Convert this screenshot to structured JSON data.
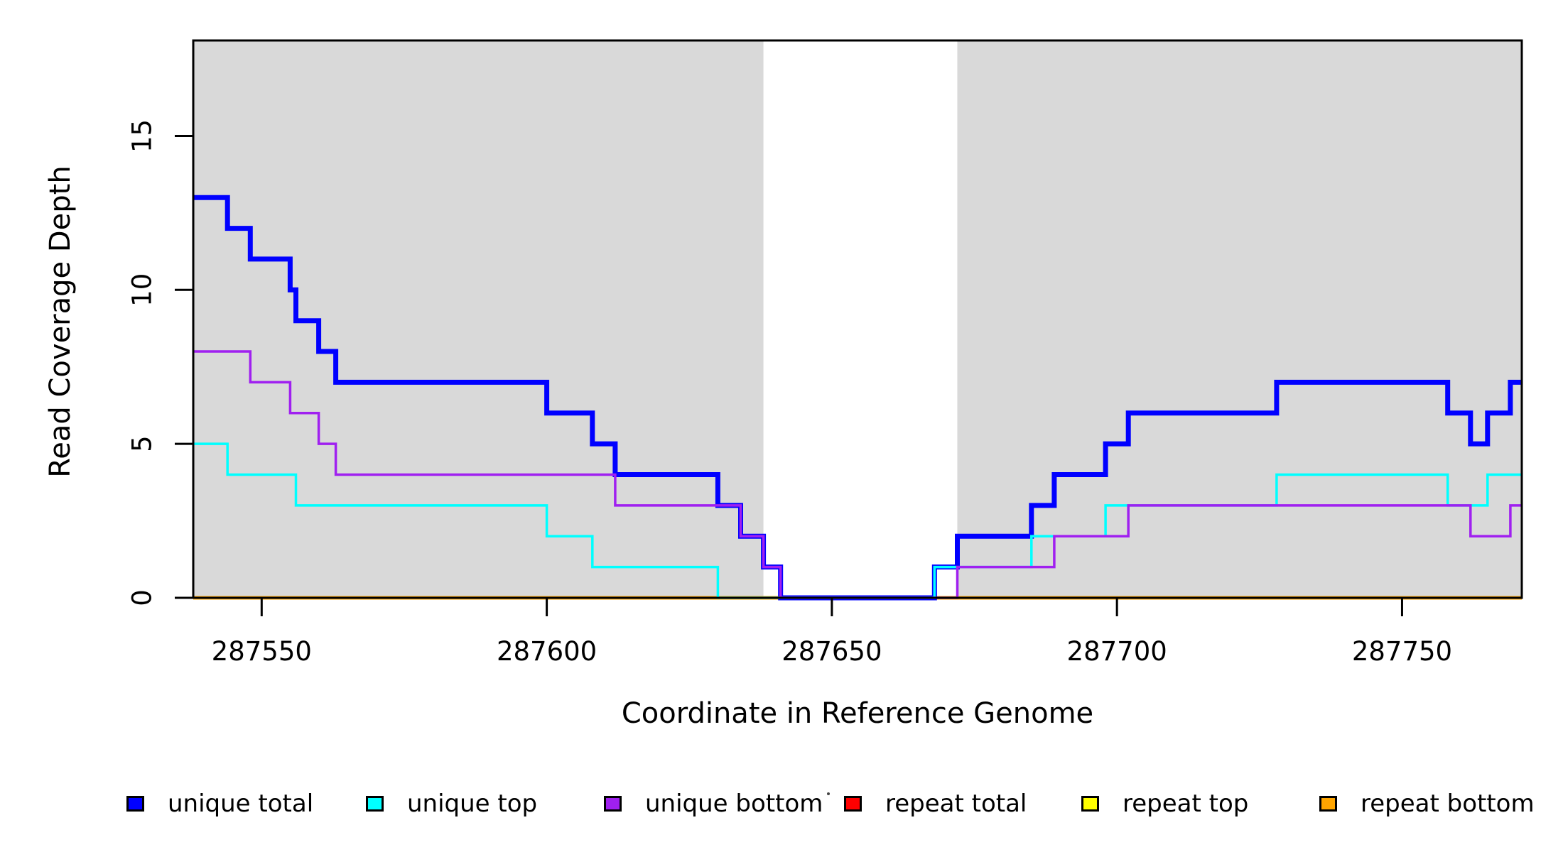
{
  "chart_data": {
    "type": "line",
    "subtype": "step-coverage",
    "title": "",
    "xlabel": "Coordinate in Reference Genome",
    "ylabel": "Read Coverage Depth",
    "xlim": [
      287538,
      287771
    ],
    "ylim": [
      0,
      18.1
    ],
    "x_ticks": [
      287550,
      287600,
      287650,
      287700,
      287750
    ],
    "y_ticks": [
      0,
      5,
      10,
      15
    ],
    "grid": false,
    "shade_color": "#D9D9D9",
    "shaded_regions": [
      [
        287538,
        287638
      ],
      [
        287672,
        287771
      ]
    ],
    "series": [
      {
        "name": "repeat total",
        "color": "#FF0000",
        "width": 3,
        "points": [
          [
            287538,
            0
          ]
        ]
      },
      {
        "name": "repeat top",
        "color": "#FFFF00",
        "width": 3,
        "points": [
          [
            287538,
            0
          ]
        ]
      },
      {
        "name": "repeat bottom",
        "color": "#FFA500",
        "width": 5,
        "points": [
          [
            287538,
            0
          ]
        ]
      },
      {
        "name": "unique total",
        "color": "#0000FF",
        "width": 7,
        "points": [
          [
            287538,
            13
          ],
          [
            287544,
            12
          ],
          [
            287548,
            11
          ],
          [
            287555,
            10
          ],
          [
            287556,
            9
          ],
          [
            287560,
            8
          ],
          [
            287563,
            7
          ],
          [
            287600,
            6
          ],
          [
            287608,
            5
          ],
          [
            287612,
            4
          ],
          [
            287630,
            3
          ],
          [
            287634,
            2
          ],
          [
            287638,
            1
          ],
          [
            287641,
            0
          ],
          [
            287668,
            1
          ],
          [
            287672,
            2
          ],
          [
            287685,
            3
          ],
          [
            287689,
            4
          ],
          [
            287698,
            5
          ],
          [
            287702,
            6
          ],
          [
            287728,
            7
          ],
          [
            287758,
            6
          ],
          [
            287762,
            5
          ],
          [
            287765,
            6
          ],
          [
            287769,
            7
          ]
        ]
      },
      {
        "name": "unique top",
        "color": "#00FFFF",
        "width": 3.5,
        "points": [
          [
            287538,
            5
          ],
          [
            287544,
            4
          ],
          [
            287556,
            3
          ],
          [
            287600,
            2
          ],
          [
            287608,
            1
          ],
          [
            287630,
            0
          ],
          [
            287668,
            1
          ],
          [
            287685,
            2
          ],
          [
            287698,
            3
          ],
          [
            287728,
            4
          ],
          [
            287758,
            3
          ],
          [
            287765,
            4
          ]
        ]
      },
      {
        "name": "unique bottom",
        "color": "#A020F0",
        "width": 3.5,
        "points": [
          [
            287538,
            8
          ],
          [
            287548,
            7
          ],
          [
            287555,
            6
          ],
          [
            287560,
            5
          ],
          [
            287563,
            4
          ],
          [
            287612,
            3
          ],
          [
            287634,
            2
          ],
          [
            287638,
            1
          ],
          [
            287641,
            0
          ],
          [
            287672,
            1
          ],
          [
            287689,
            2
          ],
          [
            287702,
            3
          ],
          [
            287762,
            2
          ],
          [
            287769,
            3
          ]
        ]
      }
    ],
    "legend_position": "bottom",
    "legend": [
      {
        "label": "unique total",
        "color": "#0000FF"
      },
      {
        "label": "unique top",
        "color": "#00FFFF"
      },
      {
        "label": "unique bottom",
        "color": "#A020F0"
      },
      {
        "label": "repeat total",
        "color": "#FF0000"
      },
      {
        "label": "repeat top",
        "color": "#FFFF00"
      },
      {
        "label": "repeat bottom",
        "color": "#FFA500"
      }
    ]
  }
}
